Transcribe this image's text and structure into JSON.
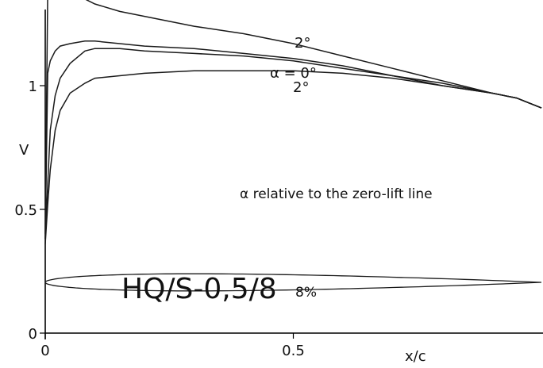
{
  "chart_data": {
    "type": "line",
    "xlabel": "x/c",
    "ylabel": "V",
    "xlim": [
      0,
      1
    ],
    "ylim": [
      0,
      1.45
    ],
    "x_ticks": [
      0,
      0.5
    ],
    "x_tick_labels": [
      "0",
      "0.5"
    ],
    "y_ticks": [
      0,
      0.5,
      1
    ],
    "y_tick_labels": [
      "0",
      "0.5",
      "1"
    ],
    "grid": false,
    "annotation": "α relative to the zero-lift line",
    "airfoil_label": "HQ/S-0,5/8",
    "thickness_label": "8%",
    "curve_labels": {
      "upper_2": "2°",
      "mid_0": "α = 0°",
      "lower_2": "2°"
    },
    "x": [
      0,
      0.005,
      0.01,
      0.02,
      0.03,
      0.05,
      0.08,
      0.1,
      0.15,
      0.2,
      0.3,
      0.4,
      0.5,
      0.6,
      0.7,
      0.8,
      0.9,
      0.95,
      1.0
    ],
    "series": [
      {
        "name": "2° upper",
        "values": [
          0.4,
          1.38,
          1.41,
          1.4,
          1.39,
          1.37,
          1.35,
          1.33,
          1.3,
          1.28,
          1.24,
          1.21,
          1.17,
          1.12,
          1.07,
          1.02,
          0.97,
          0.95,
          0.91
        ]
      },
      {
        "name": "α = 0° upper",
        "values": [
          0.38,
          1.05,
          1.1,
          1.14,
          1.16,
          1.17,
          1.18,
          1.18,
          1.17,
          1.16,
          1.15,
          1.13,
          1.11,
          1.08,
          1.04,
          1.01,
          0.97,
          0.95,
          0.91
        ]
      },
      {
        "name": "α = 0° lower",
        "values": [
          0.38,
          0.6,
          0.82,
          0.96,
          1.03,
          1.09,
          1.14,
          1.15,
          1.15,
          1.14,
          1.13,
          1.12,
          1.1,
          1.07,
          1.04,
          1.0,
          0.97,
          0.95,
          0.91
        ]
      },
      {
        "name": "2° lower",
        "values": [
          0.36,
          0.52,
          0.66,
          0.82,
          0.9,
          0.97,
          1.01,
          1.03,
          1.04,
          1.05,
          1.06,
          1.06,
          1.06,
          1.05,
          1.03,
          1.0,
          0.97,
          0.95,
          0.91
        ]
      }
    ],
    "airfoil_thickness": 0.08
  }
}
